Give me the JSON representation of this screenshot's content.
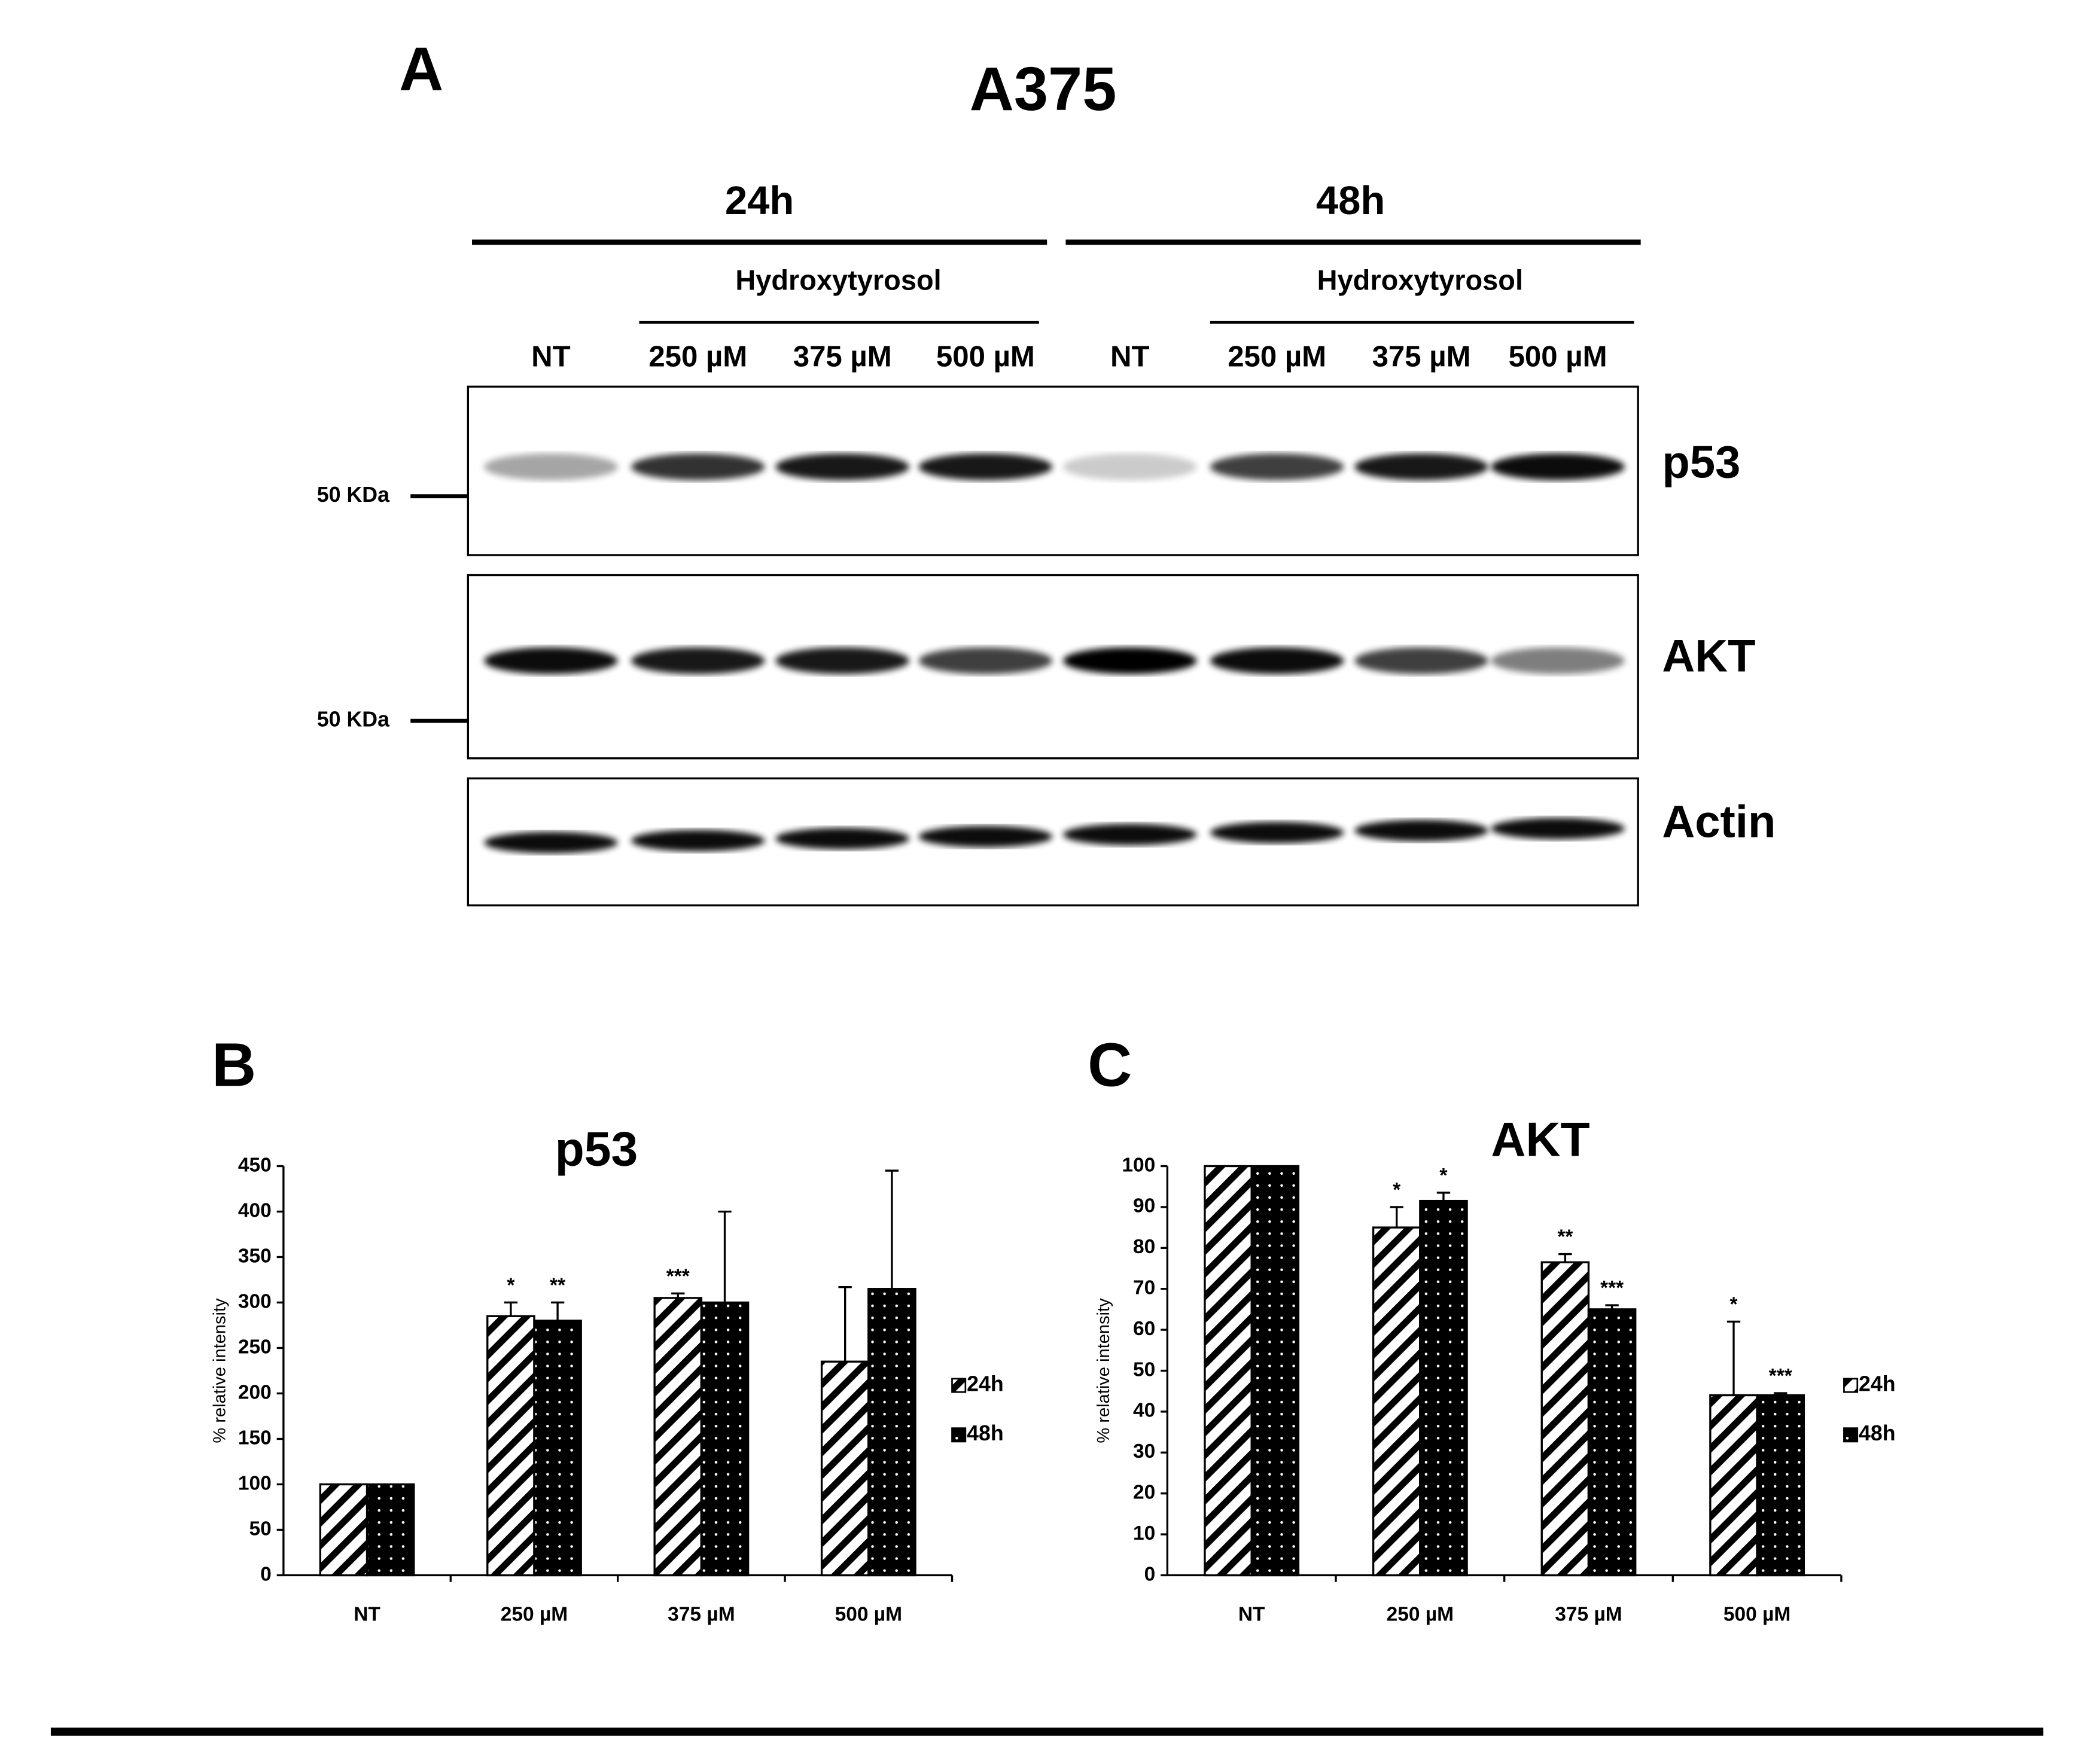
{
  "blot": {
    "panel": "A",
    "cell_line": "A375",
    "times": [
      "24h",
      "48h"
    ],
    "treatment": [
      "Hydroxytyrosol",
      "Hydroxytyrosol"
    ],
    "lanes": [
      "NT",
      "250 µM",
      "375 µM",
      "500 µM",
      "NT",
      "250 µM",
      "375 µM",
      "500 µM"
    ],
    "proteins": [
      "p53",
      "AKT",
      "Actin"
    ],
    "markers": [
      "50 KDa",
      "50 KDa"
    ]
  },
  "chart_data": [
    {
      "type": "bar",
      "panel": "B",
      "title": "p53",
      "y_label": "% relative intensity",
      "categories": [
        "NT",
        "250 µM",
        "375 µM",
        "500 µM"
      ],
      "series": [
        {
          "name": "24h",
          "color": "#000000",
          "pattern": "diagonal",
          "values": [
            100,
            285,
            305,
            235
          ],
          "errors": [
            null,
            15,
            5,
            82
          ],
          "significance": [
            null,
            "*",
            "***",
            null
          ]
        },
        {
          "name": "48h",
          "color": "#000000",
          "pattern": "dots",
          "values": [
            100,
            280,
            300,
            315
          ],
          "errors": [
            null,
            20,
            100,
            130
          ],
          "significance": [
            null,
            "**",
            null,
            null
          ]
        }
      ],
      "ylim": [
        0,
        450
      ],
      "yticks": [
        0,
        50,
        100,
        150,
        200,
        250,
        300,
        350,
        400,
        450
      ],
      "legend": "right"
    },
    {
      "type": "bar",
      "panel": "C",
      "title": "AKT",
      "y_label": "% relative intensity",
      "categories": [
        "NT",
        "250 µM",
        "375 µM",
        "500 µM"
      ],
      "series": [
        {
          "name": "24h",
          "color": "#000000",
          "pattern": "diagonal",
          "values": [
            100,
            85,
            76.5,
            44
          ],
          "errors": [
            null,
            5,
            2,
            18
          ],
          "significance": [
            null,
            "*",
            "**",
            "*"
          ]
        },
        {
          "name": "48h",
          "color": "#000000",
          "pattern": "dots",
          "values": [
            100,
            91.5,
            65,
            44
          ],
          "errors": [
            null,
            2,
            1,
            0.5
          ],
          "significance": [
            null,
            "*",
            "***",
            "***"
          ]
        }
      ],
      "ylim": [
        0,
        100
      ],
      "yticks": [
        0,
        10,
        20,
        30,
        40,
        50,
        60,
        70,
        80,
        90,
        100
      ],
      "legend": "right"
    }
  ]
}
